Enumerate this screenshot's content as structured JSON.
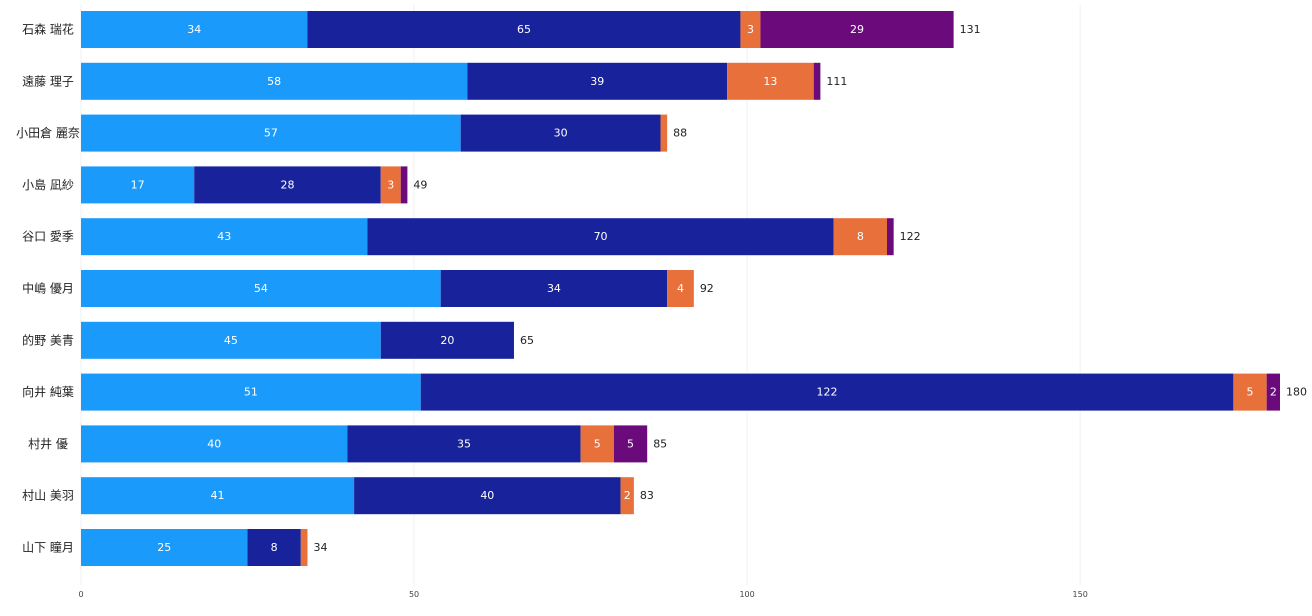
{
  "chart_data": {
    "type": "bar",
    "orientation": "horizontal",
    "stacked": true,
    "title": "",
    "xlabel": "",
    "ylabel": "",
    "xlim": [
      0,
      180
    ],
    "xticks": [
      0,
      50,
      100,
      150
    ],
    "grid": true,
    "legend": "none",
    "categories": [
      "石森 瑞花",
      "遠藤 理子",
      "小田倉 麗奈",
      "小島 凪紗",
      "谷口 愛季",
      "中嶋 優月",
      "的野 美青",
      "向井 純葉",
      "村井 優",
      "村山 美羽",
      "山下 瞳月"
    ],
    "series": [
      {
        "name": "series1",
        "color": "#1a9bfc",
        "values": [
          34,
          58,
          57,
          17,
          43,
          54,
          45,
          51,
          40,
          41,
          25
        ],
        "labels": [
          "34",
          "58",
          "57",
          "17",
          "43",
          "54",
          "45",
          "51",
          "40",
          "41",
          "25"
        ]
      },
      {
        "name": "series2",
        "color": "#18229a",
        "values": [
          65,
          39,
          30,
          28,
          70,
          34,
          20,
          122,
          35,
          40,
          8
        ],
        "labels": [
          "65",
          "39",
          "30",
          "28",
          "70",
          "34",
          "20",
          "122",
          "35",
          "40",
          "8"
        ]
      },
      {
        "name": "series3",
        "color": "#e8703a",
        "values": [
          3,
          13,
          1,
          3,
          8,
          4,
          0,
          5,
          5,
          2,
          1
        ],
        "labels": [
          "3",
          "13",
          "",
          "3",
          "8",
          "4",
          "",
          "5",
          "5",
          "2",
          ""
        ]
      },
      {
        "name": "series4",
        "color": "#6b0a7a",
        "values": [
          29,
          1,
          0,
          1,
          1,
          0,
          0,
          2,
          5,
          0,
          0
        ],
        "labels": [
          "29",
          "",
          "",
          "",
          "",
          "",
          "",
          "2",
          "5",
          "",
          ""
        ]
      }
    ],
    "totals": [
      "131",
      "111",
      "88",
      "49",
      "122",
      "92",
      "65",
      "180",
      "85",
      "83",
      "34"
    ]
  }
}
